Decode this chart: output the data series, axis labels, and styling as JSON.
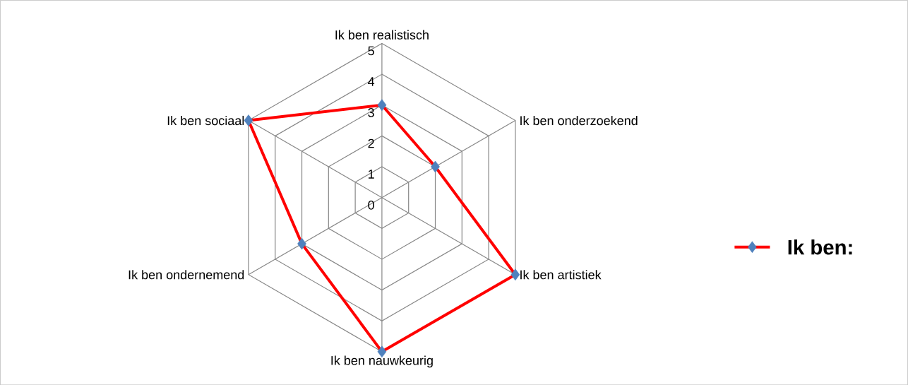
{
  "chart_data": {
    "type": "radar",
    "categories": [
      "Ik ben realistisch",
      "Ik ben onderzoekend",
      "Ik ben artistiek",
      "Ik ben nauwkeurig",
      "Ik ben ondernemend",
      "Ik ben sociaal"
    ],
    "series": [
      {
        "name": "**Ik ben:**",
        "color": "#ff0000",
        "values": [
          3,
          2,
          5,
          5,
          3,
          5
        ]
      }
    ],
    "ylim": [
      0,
      5
    ],
    "yticks": [
      0,
      1,
      2,
      3,
      4,
      5
    ],
    "grid": true,
    "legend": "right",
    "marker": "diamond",
    "line_style": "solid"
  }
}
